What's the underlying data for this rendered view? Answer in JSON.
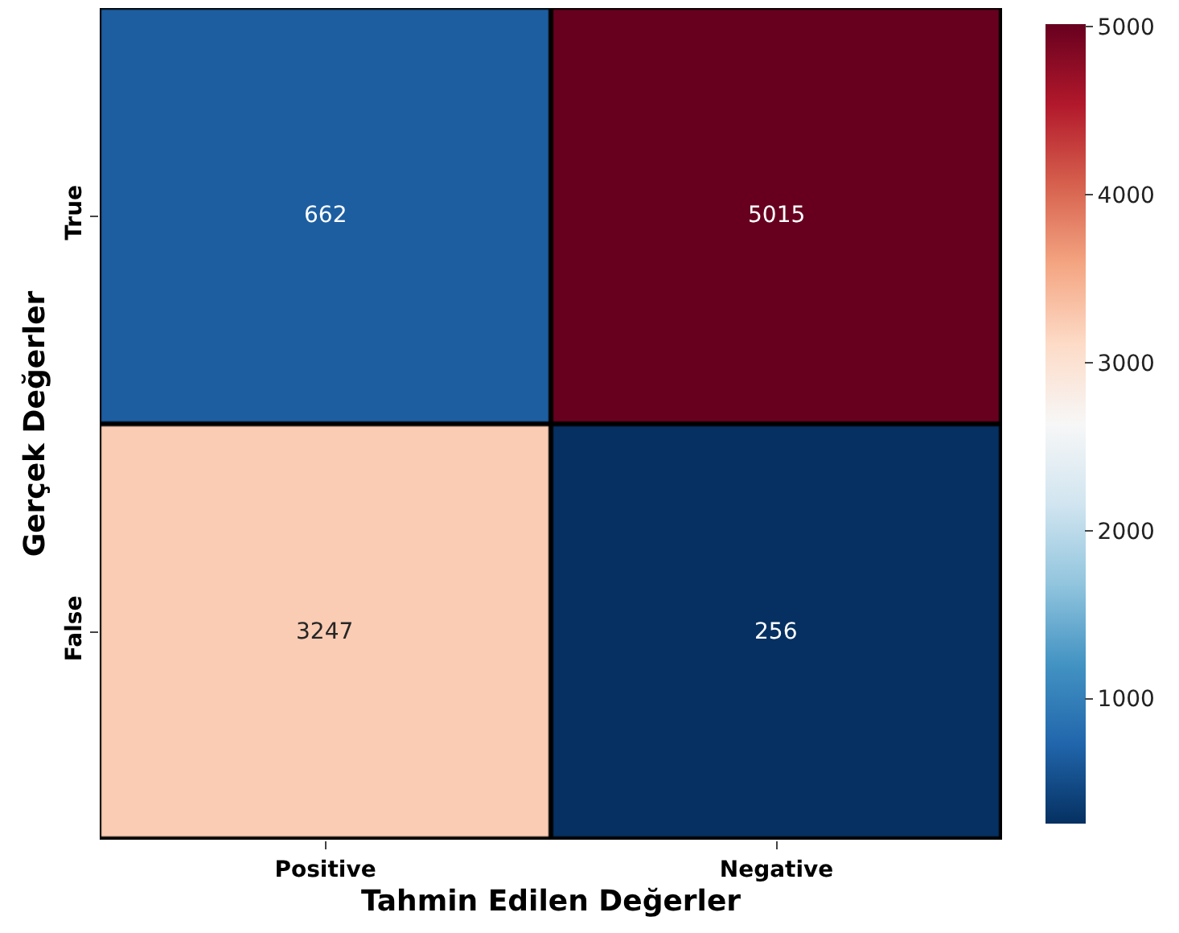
{
  "chart_data": {
    "type": "heatmap",
    "xlabel": "Tahmin Edilen Değerler",
    "ylabel": "Gerçek Değerler",
    "categories": [
      "Positive",
      "Negative"
    ],
    "y_categories": [
      "True",
      "False"
    ],
    "cells": [
      [
        662,
        5015
      ],
      [
        3247,
        256
      ]
    ],
    "data_labels": true,
    "clim": [
      256,
      5015
    ],
    "cticks": [
      1000,
      2000,
      3000,
      4000,
      5000
    ]
  }
}
